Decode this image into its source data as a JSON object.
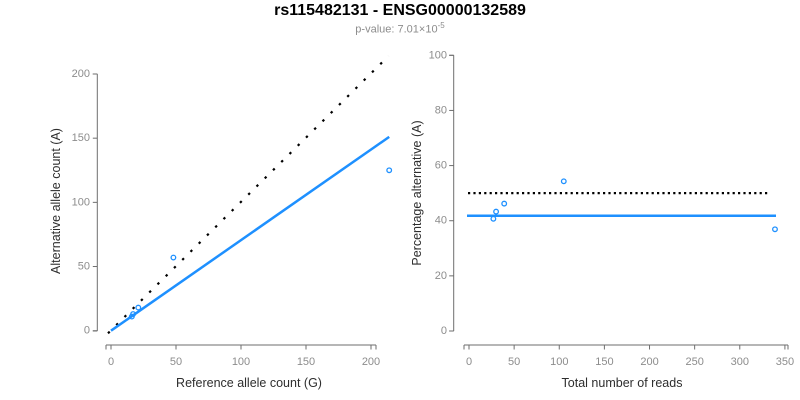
{
  "page": {
    "background": "#ffffff"
  },
  "header": {
    "title": "rs115482131 - ENSG00000132589",
    "subtitle_label": "p-value: ",
    "subtitle_mantissa": "7.01×10",
    "subtitle_exponent": "-5"
  },
  "colors": {
    "accent_blue": "#1E90FF",
    "identity_black": "#000000",
    "axis_line": "#6e6e6e",
    "tick_label": "#8c8c8c",
    "axis_title": "#2e2e2e",
    "title": "#000000",
    "subtitle": "#8c8c8c"
  },
  "chart_data": [
    {
      "id": "allele-count-scatter",
      "type": "scatter",
      "xlabel": "Reference allele count (G)",
      "ylabel": "Alternative allele count (A)",
      "xlim": [
        0,
        215
      ],
      "ylim": [
        0,
        215
      ],
      "xticks": [
        0,
        50,
        100,
        150,
        200
      ],
      "yticks": [
        0,
        50,
        100,
        150,
        200
      ],
      "grid": false,
      "legend": "none",
      "points": [
        {
          "x": 16,
          "y": 11
        },
        {
          "x": 17,
          "y": 13
        },
        {
          "x": 21,
          "y": 18
        },
        {
          "x": 48,
          "y": 57
        },
        {
          "x": 214,
          "y": 125
        }
      ],
      "identity_line": {
        "meaning": "y equals x reference",
        "style": "dotted",
        "color": "#000000",
        "x1": 0,
        "y1": 0,
        "x2": 213.5,
        "y2": 214
      },
      "fit_line": {
        "meaning": "fitted allelic ratio",
        "style": "solid",
        "color": "#1E90FF",
        "x1": 0,
        "y1": 0,
        "x2": 214,
        "y2": 151
      }
    },
    {
      "id": "percentage-scatter",
      "type": "scatter",
      "xlabel": "Total number of reads",
      "ylabel": "Percentage alternative (A)",
      "xlim": [
        0,
        350
      ],
      "ylim": [
        0,
        100
      ],
      "xticks": [
        0,
        50,
        100,
        150,
        200,
        250,
        300,
        350
      ],
      "yticks": [
        0,
        20,
        40,
        60,
        80,
        100
      ],
      "grid": false,
      "legend": "none",
      "points": [
        {
          "x": 27,
          "y": 40.7
        },
        {
          "x": 30,
          "y": 43.3
        },
        {
          "x": 39,
          "y": 46.2
        },
        {
          "x": 105,
          "y": 54.3
        },
        {
          "x": 339,
          "y": 36.9
        }
      ],
      "null_line": {
        "meaning": "50 percent reference",
        "style": "dotted",
        "color": "#000000",
        "y": 50
      },
      "mean_line": {
        "meaning": "mean percentage alternative",
        "style": "solid",
        "color": "#1E90FF",
        "y": 41.8
      }
    }
  ]
}
